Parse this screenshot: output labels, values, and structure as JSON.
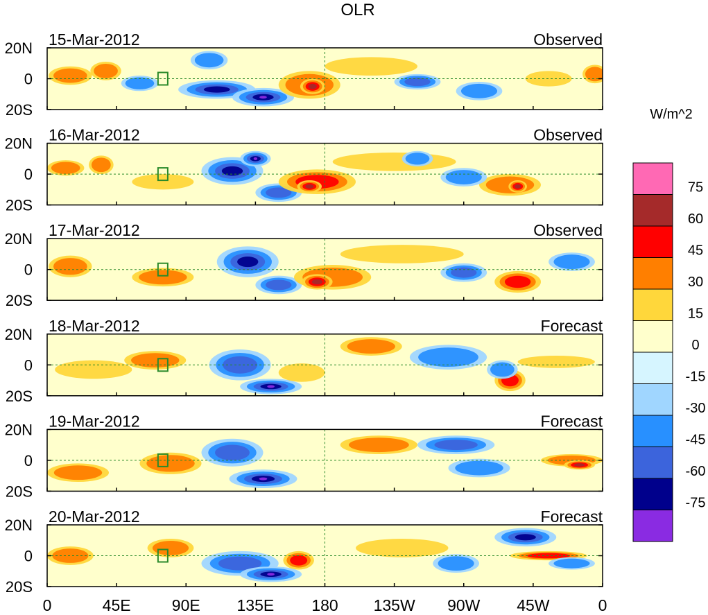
{
  "chart_data": {
    "type": "heatmap",
    "title": "OLR",
    "colorbar": {
      "units": "W/m^2",
      "levels": [
        "75",
        "60",
        "45",
        "30",
        "15",
        "0",
        "-15",
        "-30",
        "-45",
        "-60",
        "-75"
      ],
      "colors": [
        "#ff69b4",
        "#a52a2a",
        "#ff0000",
        "#ff7f00",
        "#ffd73b",
        "#ffffcc",
        "#d6f5ff",
        "#a0d6ff",
        "#2890ff",
        "#3c64dc",
        "#00008c",
        "#8a2be2"
      ]
    },
    "x_ticks": [
      "0",
      "45E",
      "90E",
      "135E",
      "180",
      "135W",
      "90W",
      "45W",
      "0"
    ],
    "y_ticks": [
      "20N",
      "0",
      "20S"
    ],
    "panels": [
      {
        "date": "15-Mar-2012",
        "kind": "Observed"
      },
      {
        "date": "16-Mar-2012",
        "kind": "Observed"
      },
      {
        "date": "17-Mar-2012",
        "kind": "Observed"
      },
      {
        "date": "18-Mar-2012",
        "kind": "Forecast"
      },
      {
        "date": "19-Mar-2012",
        "kind": "Forecast"
      },
      {
        "date": "20-Mar-2012",
        "kind": "Forecast"
      }
    ],
    "anomaly_blobs": [
      [
        {
          "lon": 15,
          "lat": 2,
          "rlon": 14,
          "rlat": 6,
          "v": 40
        },
        {
          "lon": 38,
          "lat": 5,
          "rlon": 10,
          "rlat": 6,
          "v": 35
        },
        {
          "lon": 60,
          "lat": -3,
          "rlon": 12,
          "rlat": 5,
          "v": -30
        },
        {
          "lon": 105,
          "lat": 12,
          "rlon": 12,
          "rlat": 6,
          "v": -40
        },
        {
          "lon": 110,
          "lat": -7,
          "rlon": 25,
          "rlat": 6,
          "v": -70
        },
        {
          "lon": 140,
          "lat": -12,
          "rlon": 20,
          "rlat": 6,
          "v": -80
        },
        {
          "lon": 170,
          "lat": -4,
          "rlon": 20,
          "rlat": 9,
          "v": 40
        },
        {
          "lon": 172,
          "lat": -5,
          "rlon": 8,
          "rlat": 5,
          "v": 70
        },
        {
          "lon": 210,
          "lat": 8,
          "rlon": 30,
          "rlat": 6,
          "v": 20
        },
        {
          "lon": 240,
          "lat": -2,
          "rlon": 15,
          "rlat": 5,
          "v": -50
        },
        {
          "lon": 280,
          "lat": -8,
          "rlon": 15,
          "rlat": 6,
          "v": -35
        },
        {
          "lon": 325,
          "lat": 0,
          "rlon": 15,
          "rlat": 5,
          "v": 25
        },
        {
          "lon": 355,
          "lat": 3,
          "rlon": 8,
          "rlat": 6,
          "v": 40
        }
      ],
      [
        {
          "lon": 12,
          "lat": 4,
          "rlon": 12,
          "rlat": 5,
          "v": 35
        },
        {
          "lon": 35,
          "lat": 6,
          "rlon": 8,
          "rlat": 6,
          "v": 40
        },
        {
          "lon": 75,
          "lat": -5,
          "rlon": 20,
          "rlat": 5,
          "v": 25
        },
        {
          "lon": 120,
          "lat": 2,
          "rlon": 20,
          "rlat": 9,
          "v": -60
        },
        {
          "lon": 135,
          "lat": 10,
          "rlon": 10,
          "rlat": 5,
          "v": -80
        },
        {
          "lon": 150,
          "lat": -12,
          "rlon": 15,
          "rlat": 6,
          "v": -50
        },
        {
          "lon": 175,
          "lat": -5,
          "rlon": 25,
          "rlat": 8,
          "v": 45
        },
        {
          "lon": 170,
          "lat": -8,
          "rlon": 8,
          "rlat": 4,
          "v": 60
        },
        {
          "lon": 225,
          "lat": 8,
          "rlon": 40,
          "rlat": 6,
          "v": 20
        },
        {
          "lon": 240,
          "lat": 10,
          "rlon": 10,
          "rlat": 5,
          "v": -40
        },
        {
          "lon": 300,
          "lat": -7,
          "rlon": 20,
          "rlat": 7,
          "v": 40
        },
        {
          "lon": 305,
          "lat": -8,
          "rlon": 6,
          "rlat": 4,
          "v": 60
        },
        {
          "lon": 270,
          "lat": -2,
          "rlon": 15,
          "rlat": 6,
          "v": -40
        }
      ],
      [
        {
          "lon": 15,
          "lat": 2,
          "rlon": 14,
          "rlat": 7,
          "v": 40
        },
        {
          "lon": 75,
          "lat": -5,
          "rlon": 20,
          "rlat": 6,
          "v": 30
        },
        {
          "lon": 130,
          "lat": 5,
          "rlon": 20,
          "rlat": 10,
          "v": -60
        },
        {
          "lon": 150,
          "lat": -10,
          "rlon": 15,
          "rlat": 6,
          "v": -50
        },
        {
          "lon": 185,
          "lat": -5,
          "rlon": 25,
          "rlat": 8,
          "v": 40
        },
        {
          "lon": 175,
          "lat": -8,
          "rlon": 10,
          "rlat": 5,
          "v": 60
        },
        {
          "lon": 230,
          "lat": 10,
          "rlon": 40,
          "rlat": 6,
          "v": 20
        },
        {
          "lon": 270,
          "lat": -2,
          "rlon": 15,
          "rlat": 6,
          "v": -50
        },
        {
          "lon": 305,
          "lat": -8,
          "rlon": 15,
          "rlat": 7,
          "v": 45
        },
        {
          "lon": 340,
          "lat": 5,
          "rlon": 15,
          "rlat": 6,
          "v": -30
        }
      ],
      [
        {
          "lon": 30,
          "lat": -3,
          "rlon": 25,
          "rlat": 6,
          "v": 25
        },
        {
          "lon": 70,
          "lat": 3,
          "rlon": 20,
          "rlat": 6,
          "v": 30
        },
        {
          "lon": 125,
          "lat": 0,
          "rlon": 20,
          "rlat": 10,
          "v": -50
        },
        {
          "lon": 145,
          "lat": -14,
          "rlon": 20,
          "rlat": 5,
          "v": -80
        },
        {
          "lon": 165,
          "lat": -5,
          "rlon": 15,
          "rlat": 6,
          "v": 25
        },
        {
          "lon": 210,
          "lat": 12,
          "rlon": 20,
          "rlat": 6,
          "v": 35
        },
        {
          "lon": 260,
          "lat": 5,
          "rlon": 25,
          "rlat": 8,
          "v": -30
        },
        {
          "lon": 300,
          "lat": -10,
          "rlon": 10,
          "rlat": 7,
          "v": 45
        },
        {
          "lon": 295,
          "lat": -3,
          "rlon": 10,
          "rlat": 6,
          "v": -40
        },
        {
          "lon": 330,
          "lat": 2,
          "rlon": 25,
          "rlat": 4,
          "v": 20
        }
      ],
      [
        {
          "lon": 20,
          "lat": -8,
          "rlon": 20,
          "rlat": 6,
          "v": 30
        },
        {
          "lon": 80,
          "lat": -2,
          "rlon": 20,
          "rlat": 7,
          "v": 30
        },
        {
          "lon": 120,
          "lat": 5,
          "rlon": 20,
          "rlat": 9,
          "v": -50
        },
        {
          "lon": 140,
          "lat": -12,
          "rlon": 22,
          "rlat": 6,
          "v": -80
        },
        {
          "lon": 215,
          "lat": 10,
          "rlon": 25,
          "rlat": 6,
          "v": 30
        },
        {
          "lon": 265,
          "lat": 10,
          "rlon": 25,
          "rlat": 6,
          "v": -45
        },
        {
          "lon": 280,
          "lat": -5,
          "rlon": 20,
          "rlat": 6,
          "v": -30
        },
        {
          "lon": 340,
          "lat": 0,
          "rlon": 20,
          "rlat": 4,
          "v": 40
        },
        {
          "lon": 345,
          "lat": -3,
          "rlon": 10,
          "rlat": 3,
          "v": 60
        }
      ],
      [
        {
          "lon": 15,
          "lat": 0,
          "rlon": 15,
          "rlat": 6,
          "v": 30
        },
        {
          "lon": 80,
          "lat": 5,
          "rlon": 15,
          "rlat": 6,
          "v": 30
        },
        {
          "lon": 125,
          "lat": -5,
          "rlon": 25,
          "rlat": 8,
          "v": -50
        },
        {
          "lon": 145,
          "lat": -12,
          "rlon": 20,
          "rlat": 5,
          "v": -80
        },
        {
          "lon": 163,
          "lat": -3,
          "rlon": 10,
          "rlat": 6,
          "v": 50
        },
        {
          "lon": 230,
          "lat": 5,
          "rlon": 30,
          "rlat": 6,
          "v": 25
        },
        {
          "lon": 265,
          "lat": -5,
          "rlon": 15,
          "rlat": 6,
          "v": -40
        },
        {
          "lon": 310,
          "lat": 12,
          "rlon": 20,
          "rlat": 6,
          "v": -70
        },
        {
          "lon": 325,
          "lat": 0,
          "rlon": 25,
          "rlat": 3,
          "v": 50
        },
        {
          "lon": 340,
          "lat": -5,
          "rlon": 15,
          "rlat": 4,
          "v": -40
        }
      ]
    ]
  }
}
